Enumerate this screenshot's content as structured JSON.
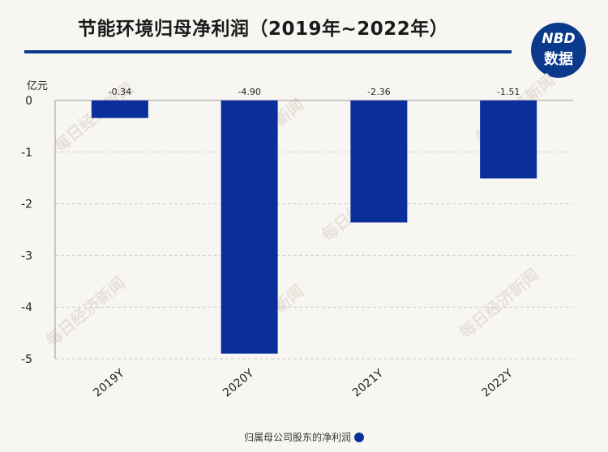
{
  "header": {
    "title": "节能环境归母净利润（2019年~2022年）",
    "logo_line1": "NBD",
    "logo_line2": "数据"
  },
  "colors": {
    "bar": "#0b2f9a",
    "accent": "#0b3a8c"
  },
  "chart_data": {
    "type": "bar",
    "unit": "亿元",
    "categories": [
      "2019Y",
      "2020Y",
      "2021Y",
      "2022Y"
    ],
    "series": [
      {
        "name": "归属母公司股东的净利润",
        "values": [
          -0.34,
          -4.9,
          -2.36,
          -1.51
        ]
      }
    ],
    "data_labels": [
      "-0.34",
      "-4.90",
      "-2.36",
      "-1.51"
    ],
    "y_ticks": [
      "0",
      "-1",
      "-2",
      "-3",
      "-4",
      "-5"
    ],
    "y_tick_values": [
      0,
      -1,
      -2,
      -3,
      -4,
      -5
    ],
    "ylim": [
      -5,
      0
    ],
    "grid": true,
    "legend": "bottom-center",
    "watermark": "每日经济新闻"
  }
}
